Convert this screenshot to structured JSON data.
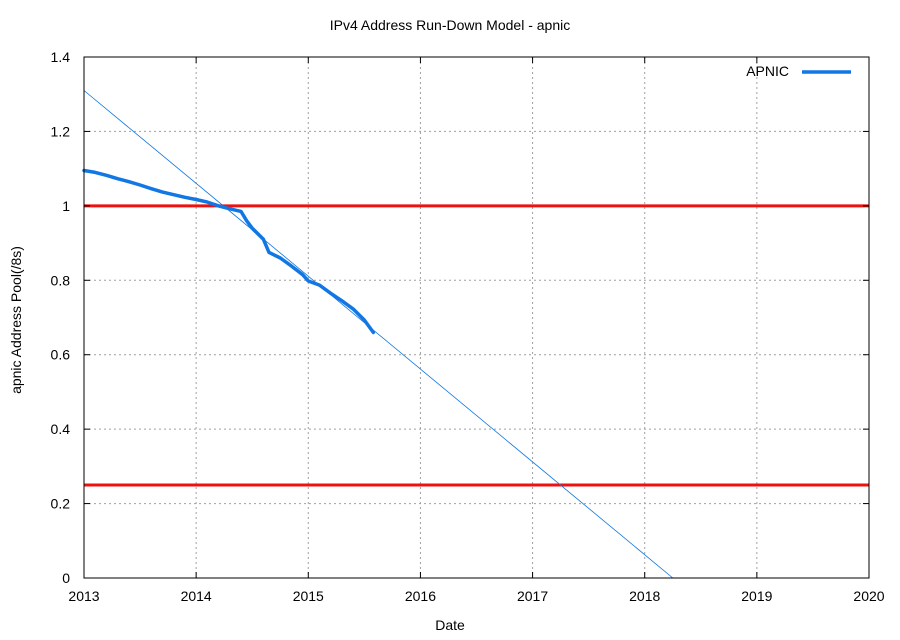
{
  "chart_data": {
    "type": "line",
    "title": "IPv4 Address Run-Down Model - apnic",
    "xlabel": "Date",
    "ylabel": "apnic Address Pool(/8s)",
    "xlim": [
      2013,
      2020
    ],
    "ylim": [
      0,
      1.4
    ],
    "x_ticks": [
      "2013",
      "2014",
      "2015",
      "2016",
      "2017",
      "2018",
      "2019",
      "2020"
    ],
    "y_ticks": [
      "0",
      "0.2",
      "0.4",
      "0.6",
      "0.8",
      "1",
      "1.2",
      "1.4"
    ],
    "grid": true,
    "legend": {
      "position": "top-right",
      "entries": [
        "APNIC"
      ]
    },
    "colors": {
      "series": "#1177e3",
      "threshold": "#ee1111",
      "grid": "#a0a0a0"
    },
    "series": [
      {
        "name": "APNIC",
        "values": [
          [
            2013.0,
            1.095
          ],
          [
            2013.1,
            1.09
          ],
          [
            2013.2,
            1.082
          ],
          [
            2013.3,
            1.073
          ],
          [
            2013.4,
            1.065
          ],
          [
            2013.5,
            1.056
          ],
          [
            2013.6,
            1.046
          ],
          [
            2013.7,
            1.037
          ],
          [
            2013.8,
            1.03
          ],
          [
            2013.9,
            1.023
          ],
          [
            2014.0,
            1.017
          ],
          [
            2014.1,
            1.01
          ],
          [
            2014.2,
            1.0
          ],
          [
            2014.3,
            0.992
          ],
          [
            2014.4,
            0.985
          ],
          [
            2014.45,
            0.96
          ],
          [
            2014.5,
            0.94
          ],
          [
            2014.6,
            0.91
          ],
          [
            2014.65,
            0.875
          ],
          [
            2014.75,
            0.86
          ],
          [
            2014.85,
            0.838
          ],
          [
            2014.95,
            0.815
          ],
          [
            2015.0,
            0.798
          ],
          [
            2015.1,
            0.787
          ],
          [
            2015.2,
            0.765
          ],
          [
            2015.3,
            0.745
          ],
          [
            2015.4,
            0.723
          ],
          [
            2015.5,
            0.693
          ],
          [
            2015.58,
            0.66
          ]
        ]
      },
      {
        "name": "",
        "values": [
          [
            2013.0,
            1.31
          ],
          [
            2018.25,
            0.0
          ]
        ]
      }
    ],
    "thresholds": [
      1.0,
      0.25
    ]
  }
}
